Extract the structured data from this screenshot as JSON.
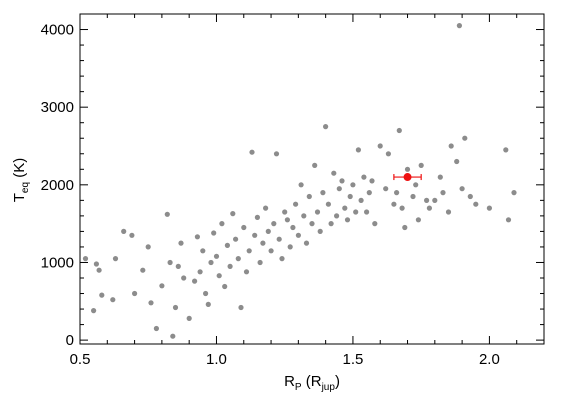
{
  "chart_data": {
    "type": "scatter",
    "title": "",
    "xlim": [
      0.5,
      2.2
    ],
    "ylim": [
      -50,
      4200
    ],
    "grid": false,
    "x_ticks": [
      0.5,
      1.0,
      1.5,
      2.0
    ],
    "x_tick_labels": [
      "0.5",
      "1.0",
      "1.5",
      "2.0"
    ],
    "y_ticks": [
      0,
      1000,
      2000,
      3000,
      4000
    ],
    "y_tick_labels": [
      "0",
      "1000",
      "2000",
      "3000",
      "4000"
    ],
    "xlabel": {
      "main": "R",
      "sub": "P",
      "unit_open": "(R",
      "unit_sub": "jup",
      "unit_close": ")"
    },
    "ylabel": {
      "main": "T",
      "sub": "eq",
      "unit": "(K)"
    },
    "colors": {
      "population": "#8c8c8c",
      "highlight": "#ee1111",
      "axis": "#000000"
    },
    "series": [
      {
        "role": "population",
        "points": [
          [
            0.52,
            1050
          ],
          [
            0.55,
            380
          ],
          [
            0.56,
            980
          ],
          [
            0.57,
            900
          ],
          [
            0.58,
            580
          ],
          [
            0.62,
            520
          ],
          [
            0.63,
            1050
          ],
          [
            0.66,
            1400
          ],
          [
            0.69,
            1350
          ],
          [
            0.7,
            600
          ],
          [
            0.73,
            900
          ],
          [
            0.75,
            1200
          ],
          [
            0.76,
            480
          ],
          [
            0.78,
            150
          ],
          [
            0.8,
            700
          ],
          [
            0.82,
            1620
          ],
          [
            0.83,
            1000
          ],
          [
            0.84,
            50
          ],
          [
            0.85,
            420
          ],
          [
            0.86,
            950
          ],
          [
            0.87,
            1250
          ],
          [
            0.88,
            800
          ],
          [
            0.9,
            280
          ],
          [
            0.92,
            760
          ],
          [
            0.93,
            1330
          ],
          [
            0.94,
            880
          ],
          [
            0.95,
            1150
          ],
          [
            0.96,
            600
          ],
          [
            0.97,
            460
          ],
          [
            0.98,
            1000
          ],
          [
            0.99,
            1380
          ],
          [
            1.0,
            1080
          ],
          [
            1.01,
            830
          ],
          [
            1.02,
            1500
          ],
          [
            1.03,
            690
          ],
          [
            1.04,
            1220
          ],
          [
            1.05,
            950
          ],
          [
            1.06,
            1630
          ],
          [
            1.07,
            1300
          ],
          [
            1.08,
            1050
          ],
          [
            1.09,
            420
          ],
          [
            1.1,
            1450
          ],
          [
            1.11,
            880
          ],
          [
            1.12,
            1150
          ],
          [
            1.13,
            2420
          ],
          [
            1.14,
            1350
          ],
          [
            1.15,
            1580
          ],
          [
            1.16,
            1000
          ],
          [
            1.17,
            1250
          ],
          [
            1.18,
            1700
          ],
          [
            1.19,
            1400
          ],
          [
            1.2,
            1150
          ],
          [
            1.21,
            1500
          ],
          [
            1.22,
            2400
          ],
          [
            1.23,
            1300
          ],
          [
            1.24,
            1050
          ],
          [
            1.25,
            1650
          ],
          [
            1.26,
            1550
          ],
          [
            1.27,
            1200
          ],
          [
            1.28,
            1450
          ],
          [
            1.29,
            1750
          ],
          [
            1.3,
            1350
          ],
          [
            1.31,
            2000
          ],
          [
            1.32,
            1600
          ],
          [
            1.33,
            1250
          ],
          [
            1.34,
            1850
          ],
          [
            1.35,
            1500
          ],
          [
            1.36,
            2250
          ],
          [
            1.37,
            1650
          ],
          [
            1.38,
            1400
          ],
          [
            1.39,
            1900
          ],
          [
            1.4,
            2750
          ],
          [
            1.41,
            1750
          ],
          [
            1.42,
            1500
          ],
          [
            1.43,
            2150
          ],
          [
            1.44,
            1600
          ],
          [
            1.45,
            1950
          ],
          [
            1.46,
            2050
          ],
          [
            1.47,
            1700
          ],
          [
            1.48,
            1550
          ],
          [
            1.49,
            1850
          ],
          [
            1.5,
            2000
          ],
          [
            1.51,
            1650
          ],
          [
            1.52,
            2450
          ],
          [
            1.53,
            1800
          ],
          [
            1.54,
            2100
          ],
          [
            1.55,
            1650
          ],
          [
            1.56,
            1900
          ],
          [
            1.57,
            2050
          ],
          [
            1.58,
            1500
          ],
          [
            1.6,
            2500
          ],
          [
            1.62,
            1950
          ],
          [
            1.63,
            2400
          ],
          [
            1.65,
            1750
          ],
          [
            1.66,
            1900
          ],
          [
            1.67,
            2700
          ],
          [
            1.68,
            1700
          ],
          [
            1.69,
            1450
          ],
          [
            1.7,
            2200
          ],
          [
            1.72,
            1850
          ],
          [
            1.73,
            2000
          ],
          [
            1.75,
            2250
          ],
          [
            1.78,
            1700
          ],
          [
            1.8,
            1800
          ],
          [
            1.82,
            2100
          ],
          [
            1.83,
            1900
          ],
          [
            1.85,
            1650
          ],
          [
            1.86,
            2500
          ],
          [
            1.88,
            2300
          ],
          [
            1.89,
            4050
          ],
          [
            1.9,
            1950
          ],
          [
            1.91,
            2600
          ],
          [
            1.93,
            1850
          ],
          [
            1.95,
            1750
          ],
          [
            2.0,
            1700
          ],
          [
            2.06,
            2450
          ],
          [
            2.07,
            1550
          ],
          [
            2.09,
            1900
          ],
          [
            1.74,
            1550
          ],
          [
            1.77,
            1800
          ]
        ]
      },
      {
        "role": "highlight",
        "points": [
          [
            1.7,
            2100
          ]
        ],
        "x_error": [
          0.05,
          0.05
        ]
      }
    ]
  }
}
